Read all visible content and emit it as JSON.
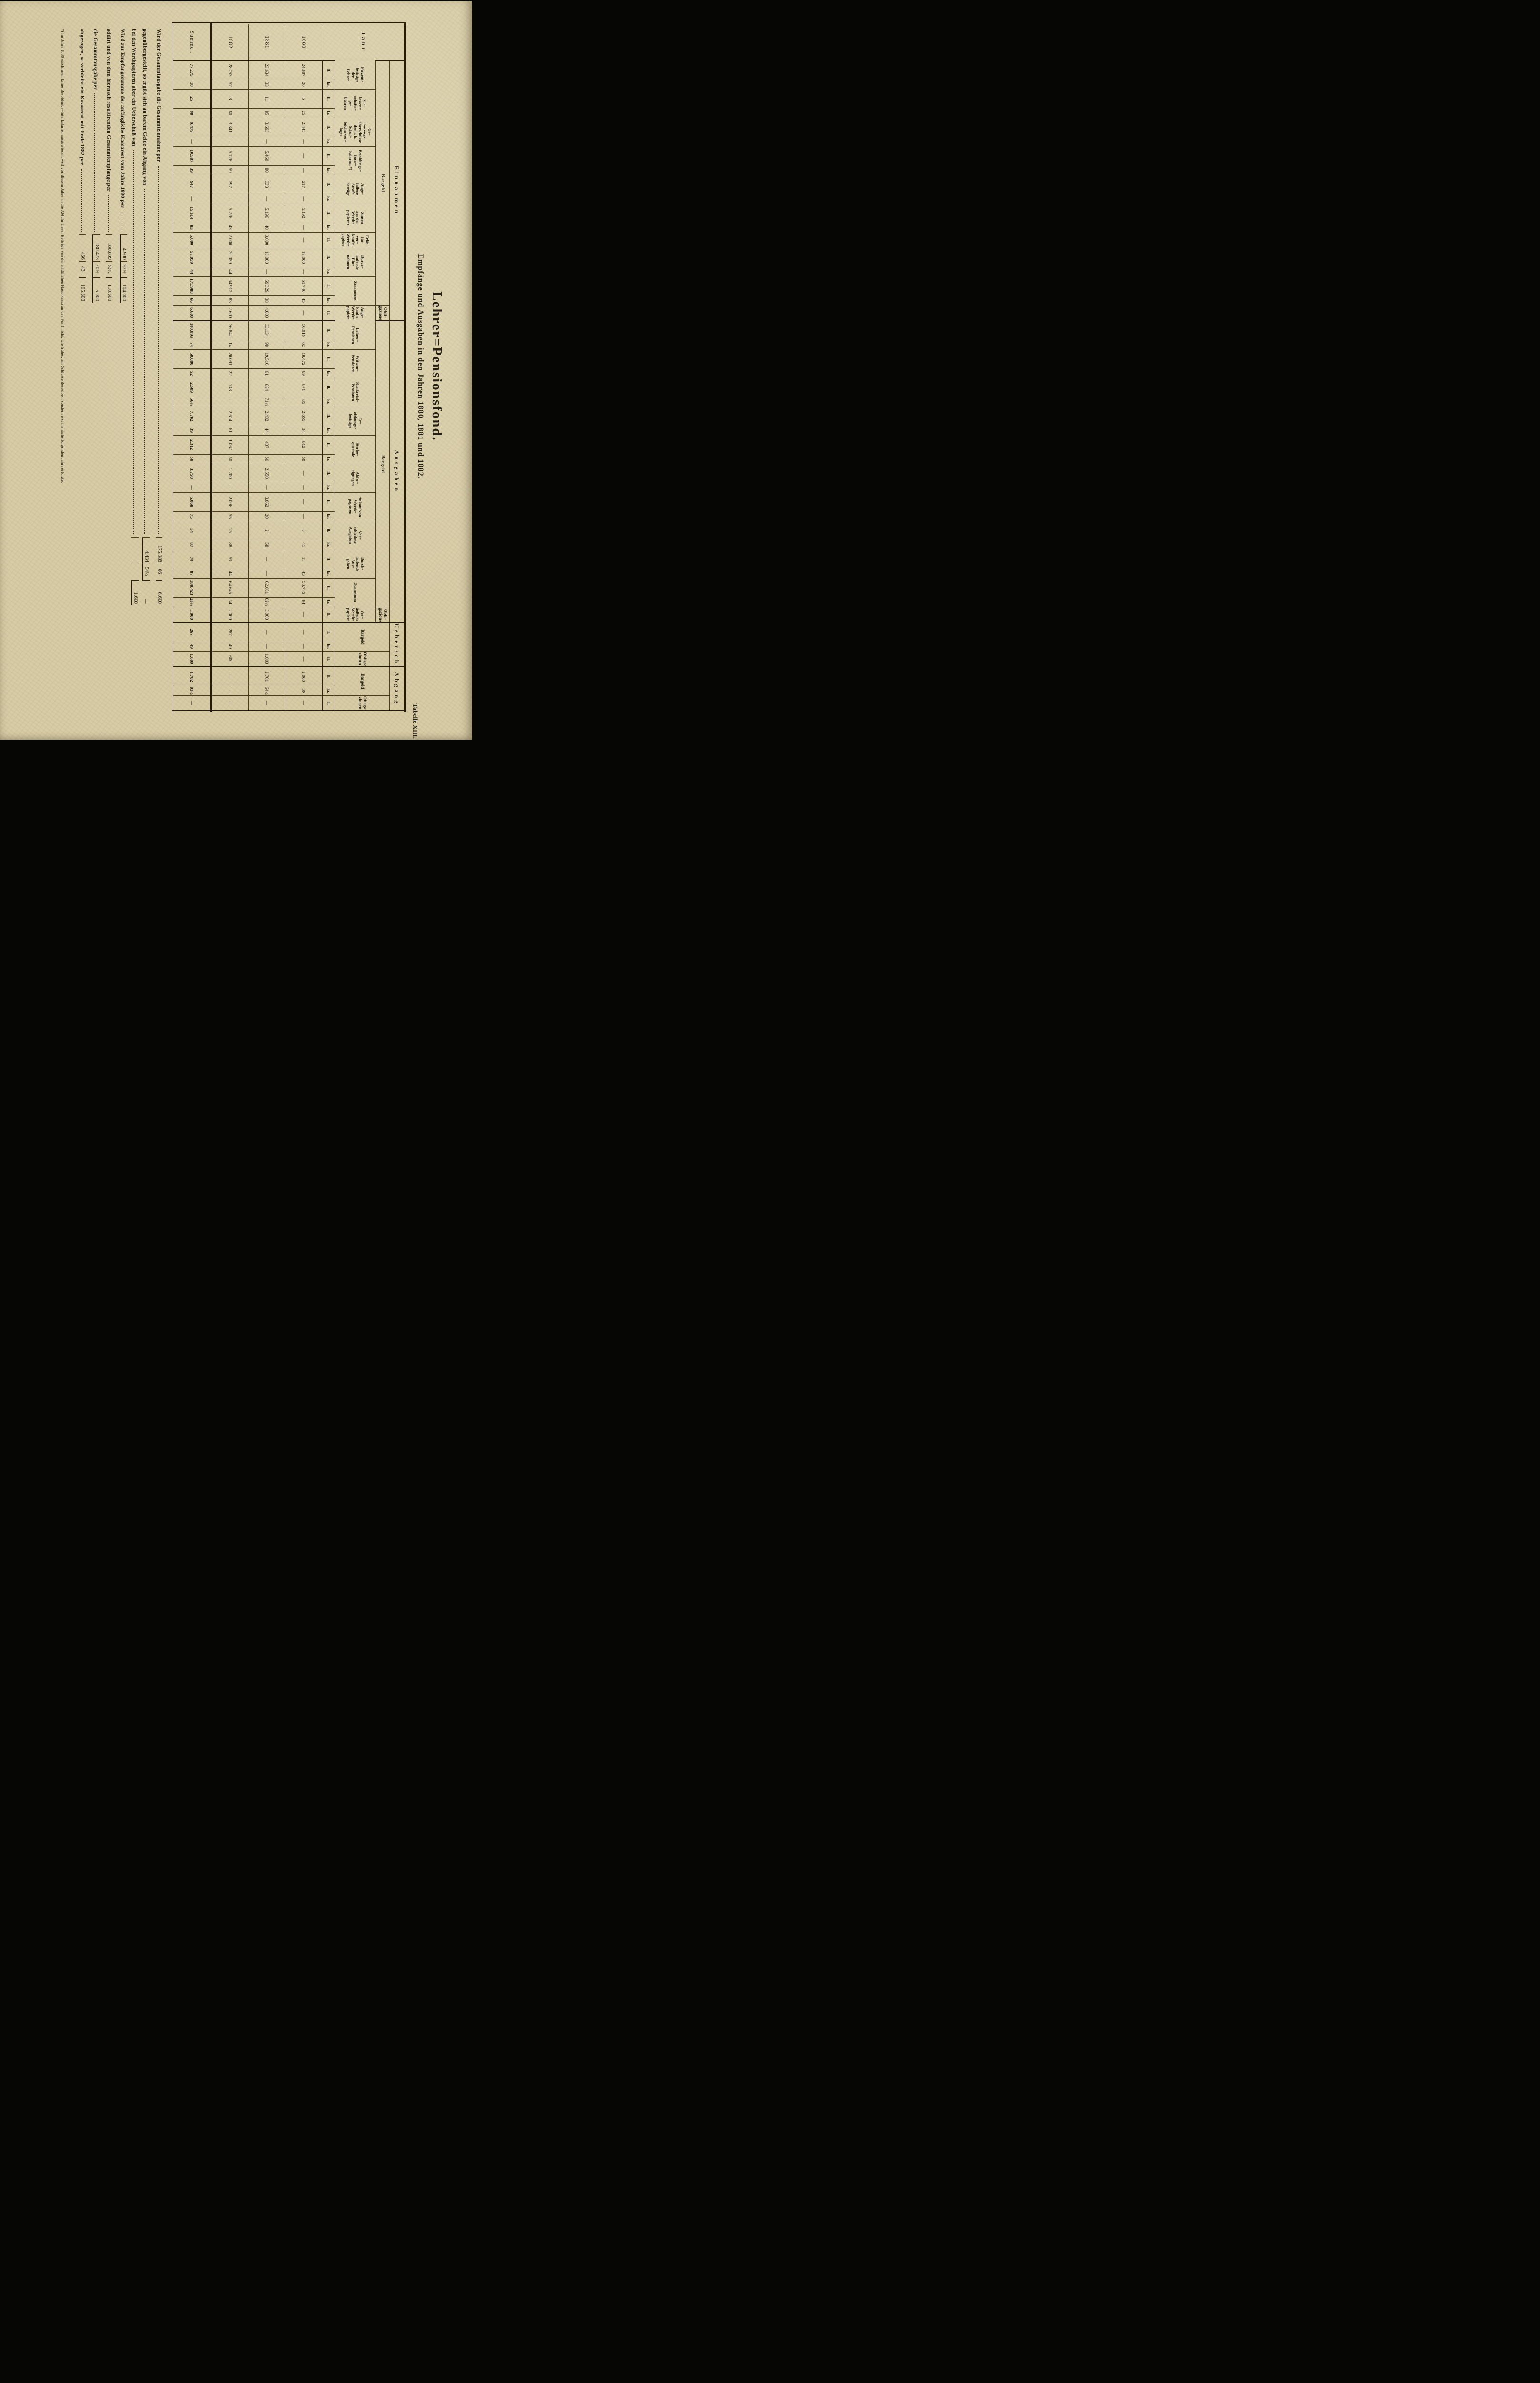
{
  "page": {
    "tabelle_label": "Tabelle XIII.",
    "title": "Lehrer=Pensionsfond.",
    "subtitle": "Empfänge und Ausgaben in den Jahren 1880, 1881 und 1882."
  },
  "table": {
    "jahr_label": "Jahr",
    "unit_fl": "fl.",
    "unit_kr": "kr.",
    "groups": [
      {
        "label": "Einnahmen",
        "subgroups": [
          {
            "label": "Bargeld",
            "columns": [
              {
                "header": [
                  "Perzent=",
                  "beiträge",
                  "der",
                  "Lehrer"
                ],
                "units": 2
              },
              {
                "header": [
                  "Ver=",
                  "lassen=",
                  "schafts=",
                  "ge=",
                  "bühren"
                ],
                "units": 2
              },
              {
                "header": [
                  "Ge=",
                  "barungs=",
                  "überschüsse",
                  "des k. k.",
                  "Schul=",
                  "bücherver=",
                  "lages"
                ],
                "units": 2
              },
              {
                "header": [
                  "Besoldungs=",
                  "Inter=",
                  "kalarien *)"
                ],
                "units": 2
              },
              {
                "header": [
                  "Ange=",
                  "fallene",
                  "Straf=",
                  "beträge"
                ],
                "units": 2
              },
              {
                "header": [
                  "Zinsen",
                  "aus den",
                  "Werth=",
                  "papieren"
                ],
                "units": 2
              },
              {
                "header": [
                  "Erlös",
                  "für ver=",
                  "kaufte",
                  "Werth=",
                  "papiere"
                ],
                "units": 1
              },
              {
                "header": [
                  "Durch=",
                  "laufende",
                  "Ein=",
                  "nahmen"
                ],
                "units": 2
              },
              {
                "header": [
                  "Zusammen"
                ],
                "units": 2,
                "bold": true
              }
            ]
          },
          {
            "label": "Obli=gazionen",
            "columns": [
              {
                "header": [
                  "Ange=",
                  "kaufte",
                  "Werth=",
                  "papiere"
                ],
                "units": 1
              }
            ]
          }
        ]
      },
      {
        "label": "Ausgaben",
        "subgroups": [
          {
            "label": "Bargeld",
            "columns": [
              {
                "header": [
                  "Lehrer=",
                  "Pensionen"
                ],
                "units": 2
              },
              {
                "header": [
                  "Witwen=",
                  "Pensionen"
                ],
                "units": 2
              },
              {
                "header": [
                  "Konkretal=",
                  "Pensionen"
                ],
                "units": 2
              },
              {
                "header": [
                  "Er=",
                  "ziehungs=",
                  "beiträge"
                ],
                "units": 2
              },
              {
                "header": [
                  "Sterbe=",
                  "quartale"
                ],
                "units": 2
              },
              {
                "header": [
                  "Abfer=",
                  "tigungen"
                ],
                "units": 2
              },
              {
                "header": [
                  "Ankauf von",
                  "Werth=",
                  "papieren"
                ],
                "units": 2
              },
              {
                "header": [
                  "Ver=",
                  "schiedene",
                  "Ausgaben"
                ],
                "units": 2
              },
              {
                "header": [
                  "Durch=",
                  "laufende",
                  "Aus=",
                  "gaben"
                ],
                "units": 2
              },
              {
                "header": [
                  "Zusammen"
                ],
                "units": 2,
                "bold": true
              }
            ]
          },
          {
            "label": "Obli=gazionen",
            "columns": [
              {
                "header": [
                  "Ver=",
                  "äußerte",
                  "Werth=",
                  "papiere"
                ],
                "units": 1
              }
            ]
          }
        ]
      },
      {
        "label": "Ueberschüsse",
        "subgroups": [
          {
            "label": null,
            "columns": [
              {
                "header": [
                  "Bargeld"
                ],
                "units": 2
              },
              {
                "header": [
                  "Obliga=",
                  "zionen"
                ],
                "units": 1
              }
            ]
          }
        ]
      },
      {
        "label": "Abgang",
        "subgroups": [
          {
            "label": null,
            "columns": [
              {
                "header": [
                  "Bargeld"
                ],
                "units": 2
              },
              {
                "header": [
                  "Obliga=",
                  "zionen"
                ],
                "units": 1
              }
            ]
          }
        ]
      }
    ],
    "rows": [
      {
        "year": "1880",
        "cells": [
          [
            "24.887",
            "20"
          ],
          [
            "5",
            "25"
          ],
          [
            "2.445",
            "—"
          ],
          [
            "—",
            "—"
          ],
          [
            "217",
            "—"
          ],
          [
            "5.192",
            "—"
          ],
          [
            "—"
          ],
          [
            "19.000",
            "—"
          ],
          [
            "51.746",
            "45"
          ],
          [
            "—"
          ],
          [
            "30.916",
            "62"
          ],
          [
            "18.472",
            "69"
          ],
          [
            "871",
            "85"
          ],
          [
            "2.655",
            "34"
          ],
          [
            "812",
            "50"
          ],
          [
            "—",
            "—"
          ],
          [
            "—",
            "—"
          ],
          [
            "6",
            "41"
          ],
          [
            "11",
            "43"
          ],
          [
            "53.746",
            "84"
          ],
          [
            "—"
          ],
          [
            "—",
            "—"
          ],
          [
            "—"
          ],
          [
            "2.000",
            "39"
          ],
          [
            "—"
          ]
        ]
      },
      {
        "year": "1881",
        "cells": [
          [
            "23.634",
            "33"
          ],
          [
            "11",
            "85"
          ],
          [
            "3.693",
            "—"
          ],
          [
            "5.460",
            "80"
          ],
          [
            "333",
            "—"
          ],
          [
            "5.196",
            "40"
          ],
          [
            "3.000"
          ],
          [
            "18.000",
            "—"
          ],
          [
            "59.329",
            "38"
          ],
          [
            "4.000"
          ],
          [
            "33.134",
            "98"
          ],
          [
            "19.516",
            "61"
          ],
          [
            "894",
            "71½"
          ],
          [
            "2.432",
            "44"
          ],
          [
            "437",
            "50"
          ],
          [
            "2.550",
            "—"
          ],
          [
            "3.062",
            "20"
          ],
          [
            "2",
            "58"
          ],
          [
            "—",
            "—"
          ],
          [
            "62.031",
            "02½"
          ],
          [
            "3.000"
          ],
          [
            "—",
            "—"
          ],
          [
            "1.000"
          ],
          [
            "2.701",
            "64½"
          ],
          [
            "—"
          ]
        ]
      },
      {
        "year": "1882",
        "cells": [
          [
            "28.753",
            "57"
          ],
          [
            "8",
            "80"
          ],
          [
            "3.341",
            "—"
          ],
          [
            "5.126",
            "59"
          ],
          [
            "397",
            "—"
          ],
          [
            "5.226",
            "43"
          ],
          [
            "2.000"
          ],
          [
            "20.059",
            "44"
          ],
          [
            "64.912",
            "83"
          ],
          [
            "2.600"
          ],
          [
            "36.842",
            "14"
          ],
          [
            "20.091",
            "22"
          ],
          [
            "743",
            "—"
          ],
          [
            "2.614",
            "61"
          ],
          [
            "1.062",
            "50"
          ],
          [
            "1.200",
            "—"
          ],
          [
            "2.006",
            "55"
          ],
          [
            "25",
            "88"
          ],
          [
            "59",
            "44"
          ],
          [
            "64.645",
            "34"
          ],
          [
            "2.000"
          ],
          [
            "267",
            "49"
          ],
          [
            "600"
          ],
          [
            "—",
            "—"
          ],
          [
            "—"
          ]
        ]
      },
      {
        "year": "Summe .",
        "is_total": true,
        "cells": [
          [
            "77.275",
            "10"
          ],
          [
            "25",
            "90"
          ],
          [
            "9.479",
            "—"
          ],
          [
            "10.587",
            "39"
          ],
          [
            "947",
            "—"
          ],
          [
            "15.614",
            "83"
          ],
          [
            "5.000"
          ],
          [
            "57.059",
            "44"
          ],
          [
            "175.988",
            "66"
          ],
          [
            "6.600"
          ],
          [
            "100.893",
            "74"
          ],
          [
            "58.080",
            "52"
          ],
          [
            "2.509",
            "56½"
          ],
          [
            "7.702",
            "39"
          ],
          [
            "2.312",
            "50"
          ],
          [
            "3.750",
            "—"
          ],
          [
            "5.068",
            "75"
          ],
          [
            "34",
            "87"
          ],
          [
            "70",
            "87"
          ],
          [
            "180.423",
            "20½"
          ],
          [
            "5.000"
          ],
          [
            "267",
            "49"
          ],
          [
            "1.600"
          ],
          [
            "4.702",
            "03½"
          ],
          [
            "—"
          ]
        ]
      }
    ]
  },
  "summary": {
    "lines": [
      {
        "text": "Wird der Gesammtausgabe die Gesammteinnahme per",
        "block": "A",
        "fl": "175.988",
        "kr": "66",
        "obl": "6.600",
        "rule": ""
      },
      {
        "text": "gegenübergestellt, so ergibt sich an barem Gelde ein Abgang von",
        "block": "A",
        "fl": "4.434",
        "kr": "54½",
        "obl": "—",
        "rule": "flkr"
      },
      {
        "text": "bei den Werthpapieren aber ein Ueberschuß von",
        "block": "A",
        "fl": "",
        "kr": "",
        "obl": "1.600",
        "rule": "obl"
      },
      {
        "text": "Wird zur Empfangssumme der anfängliche Kassarest vom Jahre 1880 per",
        "block": "B",
        "fl": "4.900",
        "kr": "97½",
        "obl": "104.000",
        "rule": "all"
      },
      {
        "text": "addirt und von dem hiernach resultirenden Gesammtempfange per",
        "block": "B",
        "fl": "180.889",
        "kr": "63½",
        "obl": "110.600",
        "rule": ""
      },
      {
        "text": "die Gesammtausgabe per",
        "block": "B",
        "fl": "180.423",
        "kr": "20½",
        "obl": "5.000",
        "rule": "all"
      },
      {
        "text": "abgezogen, so verbleibt ein Kassarest mit Ende 1882 per",
        "block": "B",
        "fl": "466",
        "kr": "43",
        "obl": "105.600",
        "rule": ""
      }
    ]
  },
  "footnote": "*) Im Jahre 1880 erschienen keine Besoldungs=Interkalarien ausgewiesen, weil von diesem Jahre an die Abfuhr dieser Beiträge von der städtischen Hauptkassa an den Fond nicht, wie früher, am Schlusse desselben, sondern erst im nächstfolgenden Jahre erfolgte."
}
